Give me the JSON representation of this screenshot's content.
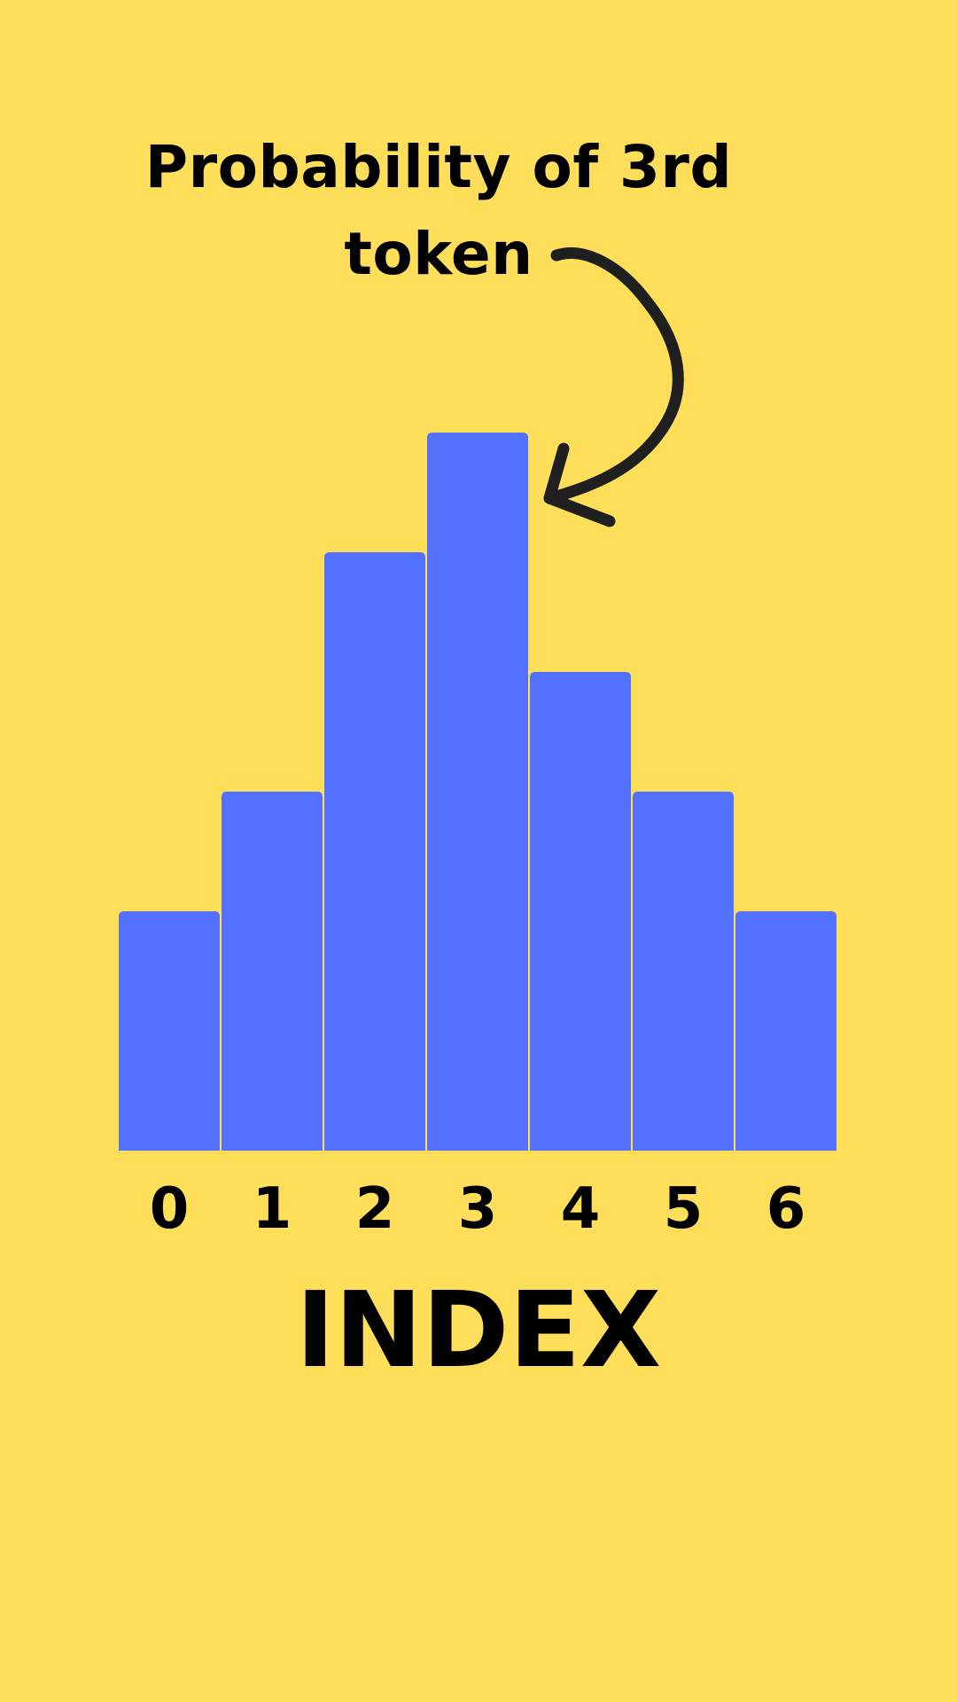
{
  "colors": {
    "background": "#FFDE59",
    "bar": "#5271FF",
    "text": "#000000",
    "arrow": "#1f1f1f"
  },
  "annotation": {
    "text": "Probability of 3rd token",
    "arrow_icon": "curved-arrow-icon"
  },
  "chart_data": {
    "type": "bar",
    "categories": [
      "0",
      "1",
      "2",
      "3",
      "4",
      "5",
      "6"
    ],
    "values": [
      1,
      1.5,
      2.5,
      3,
      2,
      1.5,
      1
    ],
    "xlabel": "INDEX",
    "ylabel": "",
    "ylim": [
      0,
      3
    ],
    "highlight_category": "3",
    "grid": false,
    "legend": "none"
  }
}
